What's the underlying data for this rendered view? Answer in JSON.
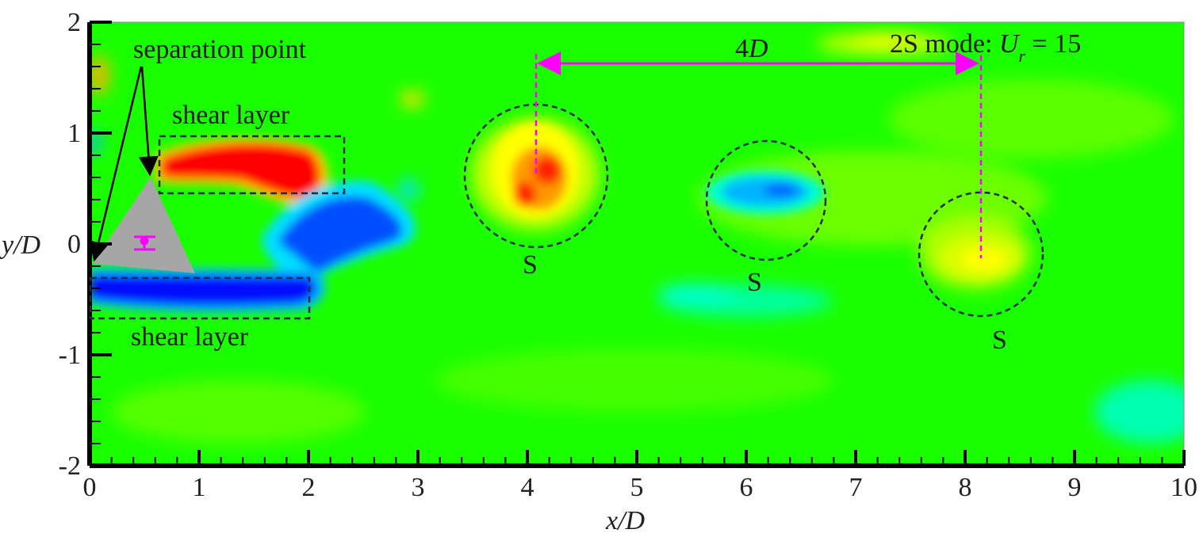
{
  "chart_data": {
    "type": "heatmap",
    "title": "",
    "xlabel": "x/D",
    "ylabel": "y/D",
    "xlim": [
      0,
      10
    ],
    "ylim": [
      -2,
      2
    ],
    "x_ticks": [
      "0",
      "1",
      "2",
      "3",
      "4",
      "5",
      "6",
      "7",
      "8",
      "9",
      "10"
    ],
    "y_ticks": [
      "2",
      "1",
      "0",
      "-1",
      "-2"
    ],
    "grid": false,
    "colormap": [
      "#0000ff",
      "#00b4ff",
      "#00ffd0",
      "#19ff00",
      "#7cff00",
      "#ffff00",
      "#ff9a00",
      "#ff0000"
    ],
    "annotations": {
      "separation": "separation point",
      "shear_upper": "shear layer",
      "shear_lower": "shear layer",
      "spacing": "4",
      "spacing_unit": "D",
      "mode_prefix": "2S mode: ",
      "mode_var": "U",
      "mode_sub": "r",
      "mode_value": " = 15",
      "vortex_labels": [
        "S",
        "S",
        "S"
      ]
    },
    "colors": {
      "background": "#1aff00",
      "positive": "#ff0000",
      "negative": "#0010ff",
      "body": "#a6a6a6",
      "marker": "#ff00ff",
      "outline": "#1e2a4a"
    }
  }
}
